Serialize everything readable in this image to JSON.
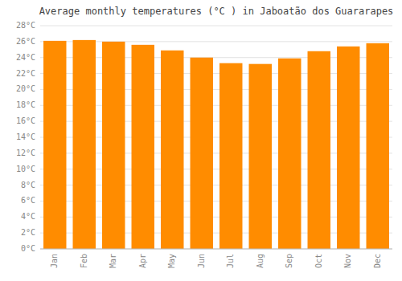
{
  "chart_data": {
    "type": "bar",
    "title": "Average monthly temperatures (°C ) in Jaboatão dos Guararapes",
    "categories": [
      "Jan",
      "Feb",
      "Mar",
      "Apr",
      "May",
      "Jun",
      "Jul",
      "Aug",
      "Sep",
      "Oct",
      "Nov",
      "Dec"
    ],
    "values": [
      26.1,
      26.2,
      26.0,
      25.6,
      24.9,
      24.0,
      23.3,
      23.2,
      23.9,
      24.8,
      25.4,
      25.8
    ],
    "color": "#FF8C00",
    "ylim": [
      0,
      28
    ],
    "yticks": [
      {
        "value": 0,
        "label": "0°C"
      },
      {
        "value": 2,
        "label": "2°C"
      },
      {
        "value": 4,
        "label": "4°C"
      },
      {
        "value": 6,
        "label": "6°C"
      },
      {
        "value": 8,
        "label": "8°C"
      },
      {
        "value": 10,
        "label": "10°C"
      },
      {
        "value": 12,
        "label": "12°C"
      },
      {
        "value": 14,
        "label": "14°C"
      },
      {
        "value": 16,
        "label": "16°C"
      },
      {
        "value": 18,
        "label": "18°C"
      },
      {
        "value": 20,
        "label": "20°C"
      },
      {
        "value": 22,
        "label": "22°C"
      },
      {
        "value": 24,
        "label": "24°C"
      },
      {
        "value": 26,
        "label": "26°C"
      },
      {
        "value": 28,
        "label": "28°C"
      }
    ],
    "grid": true
  }
}
